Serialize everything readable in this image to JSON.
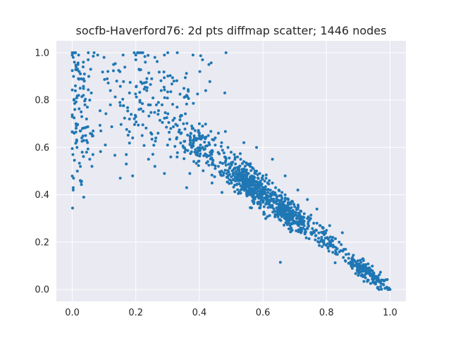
{
  "chart_data": {
    "type": "scatter",
    "title": "socfb-Haverford76: 2d pts diffmap scatter; 1446 nodes",
    "xlabel": "",
    "ylabel": "",
    "xlim": [
      -0.05,
      1.05
    ],
    "ylim": [
      -0.05,
      1.05
    ],
    "x_ticks": [
      0.0,
      0.2,
      0.4,
      0.6,
      0.8,
      1.0
    ],
    "y_ticks": [
      0.0,
      0.2,
      0.4,
      0.6,
      0.8,
      1.0
    ],
    "x_tick_labels": [
      "0.0",
      "0.2",
      "0.4",
      "0.6",
      "0.8",
      "1.0"
    ],
    "y_tick_labels": [
      "0.0",
      "0.2",
      "0.4",
      "0.6",
      "0.8",
      "1.0"
    ],
    "grid": true,
    "background_color": "#eaeaf2",
    "grid_color": "#ffffff",
    "point_color": "#1f77b4",
    "n_points": 1446,
    "points": [
      [
        0.003,
        0.98
      ],
      [
        0.004,
        0.9
      ],
      [
        0.005,
        0.8
      ],
      [
        0.006,
        0.66
      ],
      [
        0.002,
        0.57
      ],
      [
        0.004,
        0.47
      ],
      [
        0.003,
        0.43
      ],
      [
        0.003,
        0.42
      ],
      [
        0.01,
        0.86
      ],
      [
        0.012,
        0.7
      ],
      [
        0.015,
        0.6
      ],
      [
        0.018,
        0.95
      ],
      [
        0.02,
        0.99
      ],
      [
        0.022,
        0.92
      ],
      [
        0.025,
        0.85
      ],
      [
        0.028,
        0.75
      ],
      [
        0.03,
        0.73
      ],
      [
        0.032,
        0.68
      ],
      [
        0.035,
        0.96
      ],
      [
        0.038,
        0.88
      ],
      [
        0.04,
        0.78
      ],
      [
        0.042,
        0.65
      ],
      [
        0.045,
        0.58
      ],
      [
        0.048,
        0.62
      ],
      [
        0.05,
        0.97
      ],
      [
        0.052,
        0.9
      ],
      [
        0.055,
        0.55
      ],
      [
        0.058,
        0.93
      ],
      [
        0.06,
        0.83
      ],
      [
        0.065,
        0.57
      ],
      [
        0.02,
        0.82
      ],
      [
        0.03,
        0.64
      ],
      [
        0.012,
        0.94
      ],
      [
        0.008,
        0.76
      ],
      [
        0.016,
        0.5
      ],
      [
        0.045,
        0.72
      ],
      [
        0.055,
        0.8
      ],
      [
        0.035,
        0.82
      ],
      [
        0.025,
        0.67
      ],
      [
        0.062,
        0.52
      ],
      [
        0.08,
        0.99
      ],
      [
        0.09,
        0.67
      ],
      [
        0.1,
        0.98
      ],
      [
        0.11,
        0.89
      ],
      [
        0.12,
        0.84
      ],
      [
        0.13,
        0.95
      ],
      [
        0.14,
        0.88
      ],
      [
        0.15,
        0.79
      ],
      [
        0.16,
        0.99
      ],
      [
        0.17,
        0.57
      ],
      [
        0.18,
        0.72
      ],
      [
        0.19,
        0.64
      ],
      [
        0.2,
        0.99
      ],
      [
        0.2,
        0.97
      ],
      [
        0.21,
        0.93
      ],
      [
        0.22,
        0.87
      ],
      [
        0.23,
        0.96
      ],
      [
        0.24,
        0.55
      ],
      [
        0.25,
        0.89
      ],
      [
        0.26,
        0.98
      ],
      [
        0.27,
        0.74
      ],
      [
        0.28,
        0.84
      ],
      [
        0.29,
        0.99
      ],
      [
        0.3,
        0.61
      ],
      [
        0.31,
        0.68
      ],
      [
        0.32,
        0.88
      ],
      [
        0.33,
        0.56
      ],
      [
        0.34,
        0.73
      ],
      [
        0.35,
        0.6
      ],
      [
        0.36,
        0.82
      ],
      [
        0.37,
        0.49
      ],
      [
        0.38,
        0.99
      ],
      [
        0.39,
        0.57
      ],
      [
        0.4,
        0.7
      ],
      [
        0.41,
        0.97
      ],
      [
        0.42,
        0.84
      ],
      [
        0.43,
        0.95
      ],
      [
        0.44,
        0.58
      ],
      [
        0.45,
        0.64
      ],
      [
        0.46,
        0.52
      ],
      [
        0.47,
        0.5
      ],
      [
        0.48,
        0.83
      ],
      [
        0.17,
        0.53
      ],
      [
        0.19,
        0.48
      ],
      [
        0.22,
        0.65
      ],
      [
        0.26,
        0.52
      ],
      [
        0.29,
        0.49
      ],
      [
        0.33,
        0.77
      ],
      [
        0.36,
        0.43
      ],
      [
        0.38,
        0.63
      ],
      [
        0.44,
        0.45
      ],
      [
        0.41,
        0.69
      ],
      [
        0.24,
        0.78
      ],
      [
        0.15,
        0.92
      ],
      [
        0.12,
        0.78
      ],
      [
        0.18,
        0.83
      ],
      [
        0.21,
        0.76
      ],
      [
        0.27,
        0.66
      ],
      [
        0.31,
        0.56
      ],
      [
        0.35,
        0.7
      ],
      [
        0.4,
        0.66
      ],
      [
        0.43,
        0.62
      ],
      [
        0.45,
        0.61
      ],
      [
        0.47,
        0.62
      ],
      [
        0.49,
        0.6
      ],
      [
        0.5,
        0.58
      ],
      [
        0.51,
        0.57
      ],
      [
        0.52,
        0.56
      ],
      [
        0.53,
        0.55
      ],
      [
        0.54,
        0.54
      ],
      [
        0.55,
        0.53
      ],
      [
        0.56,
        0.52
      ],
      [
        0.57,
        0.51
      ],
      [
        0.58,
        0.5
      ],
      [
        0.59,
        0.49
      ],
      [
        0.6,
        0.48
      ],
      [
        0.61,
        0.47
      ],
      [
        0.62,
        0.46
      ],
      [
        0.63,
        0.45
      ],
      [
        0.64,
        0.43
      ],
      [
        0.65,
        0.42
      ],
      [
        0.66,
        0.41
      ],
      [
        0.67,
        0.4
      ],
      [
        0.68,
        0.38
      ],
      [
        0.69,
        0.37
      ],
      [
        0.7,
        0.35
      ],
      [
        0.71,
        0.34
      ],
      [
        0.72,
        0.33
      ],
      [
        0.73,
        0.32
      ],
      [
        0.74,
        0.3
      ],
      [
        0.75,
        0.3
      ],
      [
        0.76,
        0.28
      ],
      [
        0.77,
        0.28
      ],
      [
        0.78,
        0.27
      ],
      [
        0.79,
        0.26
      ],
      [
        0.8,
        0.25
      ],
      [
        0.82,
        0.22
      ],
      [
        0.84,
        0.2
      ],
      [
        0.86,
        0.17
      ],
      [
        0.87,
        0.15
      ],
      [
        0.88,
        0.13
      ],
      [
        0.89,
        0.12
      ],
      [
        0.9,
        0.1
      ],
      [
        0.91,
        0.09
      ],
      [
        0.92,
        0.08
      ],
      [
        0.93,
        0.07
      ],
      [
        0.94,
        0.06
      ],
      [
        0.95,
        0.05
      ],
      [
        0.96,
        0.04
      ],
      [
        0.97,
        0.03
      ],
      [
        0.98,
        0.02
      ],
      [
        0.99,
        0.01
      ],
      [
        1.0,
        0.0
      ],
      [
        0.655,
        0.115
      ],
      [
        0.59,
        0.41
      ],
      [
        0.58,
        0.6
      ],
      [
        0.63,
        0.55
      ],
      [
        0.67,
        0.48
      ],
      [
        0.71,
        0.42
      ],
      [
        0.74,
        0.38
      ],
      [
        0.77,
        0.34
      ],
      [
        0.81,
        0.27
      ],
      [
        0.85,
        0.24
      ],
      [
        0.54,
        0.62
      ],
      [
        0.52,
        0.47
      ],
      [
        0.56,
        0.45
      ],
      [
        0.61,
        0.38
      ],
      [
        0.66,
        0.34
      ],
      [
        0.7,
        0.28
      ],
      [
        0.73,
        0.27
      ],
      [
        0.83,
        0.15
      ],
      [
        0.86,
        0.12
      ],
      [
        0.9,
        0.06
      ],
      [
        0.93,
        0.04
      ],
      [
        0.48,
        0.56
      ],
      [
        0.46,
        0.66
      ],
      [
        0.44,
        0.55
      ],
      [
        0.5,
        0.46
      ],
      [
        0.53,
        0.42
      ],
      [
        0.57,
        0.4
      ],
      [
        0.62,
        0.36
      ],
      [
        0.64,
        0.33
      ],
      [
        0.68,
        0.3
      ],
      [
        0.72,
        0.24
      ],
      [
        0.79,
        0.2
      ]
    ],
    "cluster_regions": [
      {
        "x_center": 0.02,
        "x_spread": 0.04,
        "y_center": 0.76,
        "y_spread": 0.28,
        "n": 70
      },
      {
        "x_center": 0.24,
        "x_spread": 0.22,
        "y_center": 0.78,
        "y_spread": 0.2,
        "n": 150
      },
      {
        "x_center": 0.4,
        "x_spread": 0.1,
        "y_center": 0.65,
        "y_spread": 0.1,
        "n": 140
      },
      {
        "x_center": 0.56,
        "x_spread": 0.08,
        "y_center": 0.52,
        "y_spread": 0.07,
        "n": 380
      },
      {
        "x_center": 0.68,
        "x_spread": 0.08,
        "y_center": 0.38,
        "y_spread": 0.06,
        "n": 300
      },
      {
        "x_center": 0.8,
        "x_spread": 0.05,
        "y_center": 0.24,
        "y_spread": 0.04,
        "n": 60
      },
      {
        "x_center": 0.93,
        "x_spread": 0.07,
        "y_center": 0.06,
        "y_spread": 0.04,
        "n": 155
      }
    ]
  }
}
